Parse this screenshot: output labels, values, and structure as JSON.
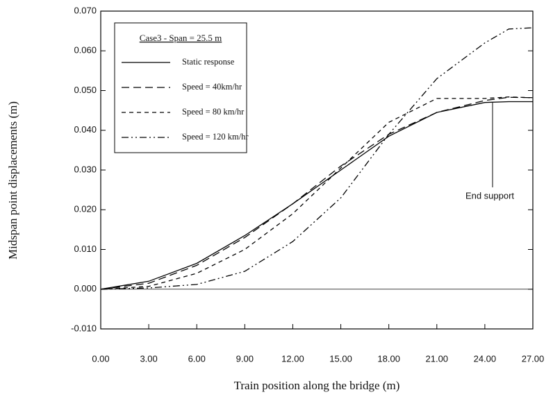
{
  "chart_data": {
    "type": "line",
    "xlabel": "Train position along the bridge (m)",
    "ylabel": "Midspan point displacements (m)",
    "legend_title": "Case3 - Span = 25.5 m",
    "annotation": "End support",
    "x": [
      0,
      3,
      6,
      9,
      12,
      15,
      18,
      21,
      24,
      25.5,
      27
    ],
    "series": [
      {
        "name": "Static response",
        "color": "#000000",
        "dash": "none",
        "values": [
          0,
          0.002,
          0.0065,
          0.0135,
          0.0215,
          0.03,
          0.0385,
          0.0445,
          0.047,
          0.0472,
          0.0472
        ]
      },
      {
        "name": "Speed = 40km/hr",
        "color": "#000000",
        "dash": "11,6",
        "values": [
          0,
          0.0015,
          0.006,
          0.013,
          0.0215,
          0.031,
          0.039,
          0.0445,
          0.0475,
          0.0483,
          0.0482
        ]
      },
      {
        "name": "Speed = 80 km/hr",
        "color": "#000000",
        "dash": "6,5",
        "values": [
          0,
          0.0007,
          0.004,
          0.01,
          0.019,
          0.0305,
          0.042,
          0.048,
          0.048,
          0.0484,
          0.0482
        ]
      },
      {
        "name": "Speed = 120 km/hr",
        "color": "#000000",
        "dash": "10,4,2,4,2,4",
        "values": [
          0,
          0.0003,
          0.0012,
          0.0045,
          0.012,
          0.023,
          0.039,
          0.053,
          0.062,
          0.0655,
          0.0658
        ]
      }
    ],
    "xlim": [
      0,
      27
    ],
    "xticks": [
      {
        "value": 0,
        "label": "0.00"
      },
      {
        "value": 3,
        "label": "3.00"
      },
      {
        "value": 6,
        "label": "6.00"
      },
      {
        "value": 9,
        "label": "9.00"
      },
      {
        "value": 12,
        "label": "12.00"
      },
      {
        "value": 15,
        "label": "15.00"
      },
      {
        "value": 18,
        "label": "18.00"
      },
      {
        "value": 21,
        "label": "21.00"
      },
      {
        "value": 24,
        "label": "24.00"
      },
      {
        "value": 27,
        "label": "27.00"
      }
    ],
    "ylim": [
      -0.01,
      0.07
    ],
    "yticks": [
      {
        "value": -0.01,
        "label": "-0.010"
      },
      {
        "value": 0,
        "label": "0.000"
      },
      {
        "value": 0.01,
        "label": "0.010"
      },
      {
        "value": 0.02,
        "label": "0.020"
      },
      {
        "value": 0.03,
        "label": "0.030"
      },
      {
        "value": 0.04,
        "label": "0.040"
      },
      {
        "value": 0.05,
        "label": "0.050"
      },
      {
        "value": 0.06,
        "label": "0.060"
      },
      {
        "value": 0.07,
        "label": "0.070"
      }
    ]
  }
}
